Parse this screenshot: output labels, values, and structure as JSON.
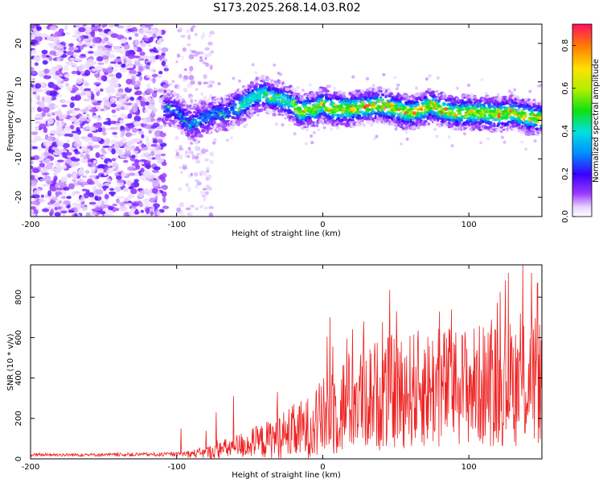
{
  "title": "S173.2025.268.14.03.R02",
  "chart_data": [
    {
      "type": "heatmap",
      "xlabel": "Height of straight line (km)",
      "ylabel": "Frequency (Hz)",
      "xlim": [
        -200,
        150
      ],
      "ylim": [
        -25,
        25
      ],
      "xticks": [
        -200,
        -100,
        0,
        100
      ],
      "yticks": [
        20,
        10,
        0,
        -10,
        -20
      ],
      "colorbar": {
        "label": "Normalized spectral amplitude",
        "ticks": [
          0.0,
          0.2,
          0.4,
          0.6,
          0.8
        ],
        "range": [
          0,
          0.9
        ]
      },
      "frequency_track": {
        "x": [
          -107,
          -100,
          -95,
          -90,
          -85,
          -75,
          -65,
          -55,
          -45,
          -40,
          -35,
          -28,
          -20,
          -15,
          -10,
          -5,
          0,
          5,
          10,
          20,
          30,
          40,
          50,
          60,
          70,
          75,
          80,
          90,
          100,
          110,
          120,
          130,
          140,
          150
        ],
        "y": [
          3.5,
          2.5,
          0.5,
          -1,
          0,
          1.5,
          2,
          4,
          6.5,
          7,
          6,
          5.5,
          4,
          2,
          3,
          2.5,
          4.5,
          3,
          3,
          3,
          3.5,
          4,
          3,
          2,
          3,
          4,
          3,
          2,
          2,
          2,
          1.5,
          2,
          1,
          0.5
        ]
      }
    },
    {
      "type": "line",
      "xlabel": "Height of straight line (km)",
      "ylabel": "SNR (10 * v/v)",
      "xlim": [
        -200,
        150
      ],
      "ylim": [
        0,
        960
      ],
      "xticks": [
        -200,
        -100,
        0,
        100
      ],
      "yticks": [
        0,
        200,
        400,
        600,
        800
      ],
      "series": [
        {
          "name": "SNR",
          "color": "#ee2222",
          "x": [
            -200,
            -150,
            -100,
            -90,
            -80,
            -70,
            -60,
            -50,
            -40,
            -30,
            -20,
            -10,
            0,
            10,
            20,
            30,
            40,
            50,
            60,
            70,
            80,
            90,
            100,
            110,
            120,
            130,
            140,
            150
          ],
          "baseline": [
            20,
            20,
            22,
            25,
            30,
            45,
            60,
            75,
            90,
            110,
            130,
            150,
            200,
            250,
            290,
            310,
            320,
            330,
            340,
            350,
            350,
            360,
            360,
            365,
            370,
            375,
            380,
            380
          ],
          "amplitude": [
            8,
            8,
            10,
            20,
            30,
            45,
            60,
            75,
            90,
            120,
            140,
            160,
            200,
            240,
            260,
            270,
            280,
            290,
            290,
            300,
            300,
            300,
            300,
            310,
            310,
            320,
            320,
            320
          ],
          "peaks": [
            [
              -97,
              150
            ],
            [
              -80,
              140
            ],
            [
              -73,
              230
            ],
            [
              -61,
              310
            ],
            [
              -31,
              330
            ],
            [
              3,
              605
            ],
            [
              5,
              700
            ],
            [
              18,
              490
            ],
            [
              28,
              680
            ],
            [
              46,
              835
            ],
            [
              88,
              740
            ],
            [
              127,
              920
            ],
            [
              137,
              960
            ],
            [
              143,
              920
            ],
            [
              147,
              870
            ]
          ]
        }
      ]
    }
  ]
}
